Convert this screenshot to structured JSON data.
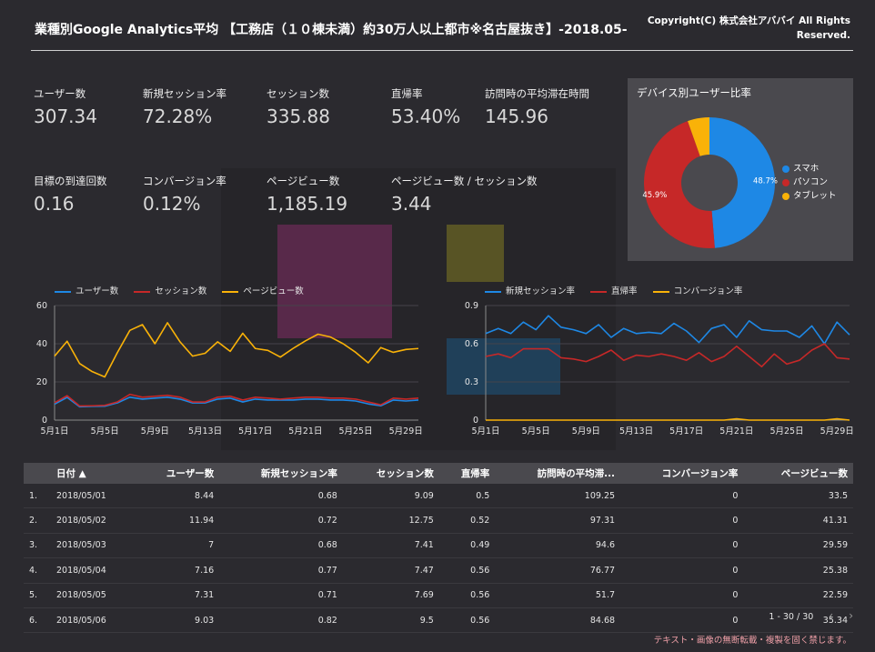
{
  "header": {
    "title": "業種別Google Analytics平均 【工務店（１０棟未満）約30万人以上都市※名古屋抜き】-2018.05-",
    "copyright": "Copyright(C) 株式会社アババイ All Rights Reserved."
  },
  "kpis": [
    {
      "label": "ユーザー数",
      "value": "307.34"
    },
    {
      "label": "新規セッション率",
      "value": "72.28%"
    },
    {
      "label": "セッション数",
      "value": "335.88"
    },
    {
      "label": "直帰率",
      "value": "53.40%"
    },
    {
      "label": "訪問時の平均滞在時間",
      "value": "145.96"
    },
    {
      "label": "目標の到達回数",
      "value": "0.16"
    },
    {
      "label": "コンバージョン率",
      "value": "0.12%"
    },
    {
      "label": "ページビュー数",
      "value": "1,185.19"
    },
    {
      "label": "ページビュー数 / セッション数",
      "value": "3.44"
    }
  ],
  "colors": {
    "blue": "#1e88e5",
    "red": "#c62828",
    "yellow": "#f9b208"
  },
  "chart_data": [
    {
      "type": "pie",
      "title": "デバイス別ユーザー比率",
      "categories": [
        "スマホ",
        "パソコン",
        "タブレット"
      ],
      "values": [
        48.7,
        45.9,
        5.4
      ],
      "slice_labels": [
        "48.7%",
        "45.9%",
        ""
      ],
      "colors": [
        "#1e88e5",
        "#c62828",
        "#f9b208"
      ],
      "legend_position": "right"
    },
    {
      "type": "line",
      "x": [
        "5月1日",
        "5月2日",
        "5月3日",
        "5月4日",
        "5月5日",
        "5月6日",
        "5月7日",
        "5月8日",
        "5月9日",
        "5月10日",
        "5月11日",
        "5月12日",
        "5月13日",
        "5月14日",
        "5月15日",
        "5月16日",
        "5月17日",
        "5月18日",
        "5月19日",
        "5月20日",
        "5月21日",
        "5月22日",
        "5月23日",
        "5月24日",
        "5月25日",
        "5月26日",
        "5月27日",
        "5月28日",
        "5月29日",
        "5月30日"
      ],
      "x_tick_labels": [
        "5月1日",
        "5月5日",
        "5月9日",
        "5月13日",
        "5月17日",
        "5月21日",
        "5月25日",
        "5月29日"
      ],
      "ylim": [
        0,
        60
      ],
      "y_ticks": [
        0,
        20,
        40,
        60
      ],
      "legend_position": "top",
      "series": [
        {
          "name": "ユーザー数",
          "color": "#1e88e5",
          "values": [
            8.4,
            11.9,
            7,
            7.2,
            7.3,
            9,
            12,
            11,
            11.5,
            12,
            11,
            9,
            9,
            11,
            11.5,
            9.5,
            11,
            10.5,
            10.5,
            10.5,
            11,
            11,
            10.5,
            10.5,
            10,
            8.5,
            7.5,
            10.5,
            10,
            10.5
          ]
        },
        {
          "name": "セッション数",
          "color": "#c62828",
          "values": [
            9.1,
            12.8,
            7.4,
            7.5,
            7.7,
            9.5,
            13.5,
            12,
            12.5,
            13,
            12,
            9.5,
            9.5,
            12,
            12.5,
            10.5,
            12,
            11.5,
            11,
            11.5,
            12,
            12,
            11.5,
            11.5,
            11,
            9.5,
            8,
            11.5,
            11,
            11.5
          ]
        },
        {
          "name": "ページビュー数",
          "color": "#f9b208",
          "values": [
            33.5,
            41.3,
            29.6,
            25.4,
            22.6,
            35.3,
            47,
            50,
            40,
            51,
            41,
            33.5,
            35,
            41,
            36,
            45.5,
            37.5,
            36.5,
            33,
            37.5,
            41.5,
            45,
            43.5,
            40,
            35.5,
            30,
            38,
            35.5,
            37,
            37.5
          ]
        }
      ]
    },
    {
      "type": "line",
      "x": [
        "5月1日",
        "5月2日",
        "5月3日",
        "5月4日",
        "5月5日",
        "5月6日",
        "5月7日",
        "5月8日",
        "5月9日",
        "5月10日",
        "5月11日",
        "5月12日",
        "5月13日",
        "5月14日",
        "5月15日",
        "5月16日",
        "5月17日",
        "5月18日",
        "5月19日",
        "5月20日",
        "5月21日",
        "5月22日",
        "5月23日",
        "5月24日",
        "5月25日",
        "5月26日",
        "5月27日",
        "5月28日",
        "5月29日",
        "5月30日"
      ],
      "x_tick_labels": [
        "5月1日",
        "5月5日",
        "5月9日",
        "5月13日",
        "5月17日",
        "5月21日",
        "5月25日",
        "5月29日"
      ],
      "ylim": [
        0,
        0.9
      ],
      "y_ticks": [
        0,
        0.3,
        0.6,
        0.9
      ],
      "legend_position": "top",
      "series": [
        {
          "name": "新規セッション率",
          "color": "#1e88e5",
          "values": [
            0.68,
            0.72,
            0.68,
            0.77,
            0.71,
            0.82,
            0.73,
            0.71,
            0.68,
            0.75,
            0.65,
            0.72,
            0.68,
            0.69,
            0.68,
            0.76,
            0.7,
            0.61,
            0.72,
            0.75,
            0.65,
            0.78,
            0.71,
            0.7,
            0.7,
            0.65,
            0.74,
            0.6,
            0.77,
            0.67
          ]
        },
        {
          "name": "直帰率",
          "color": "#c62828",
          "values": [
            0.5,
            0.52,
            0.49,
            0.56,
            0.56,
            0.56,
            0.49,
            0.48,
            0.46,
            0.5,
            0.55,
            0.47,
            0.51,
            0.5,
            0.52,
            0.5,
            0.47,
            0.53,
            0.46,
            0.5,
            0.58,
            0.5,
            0.42,
            0.52,
            0.44,
            0.47,
            0.55,
            0.6,
            0.49,
            0.48
          ]
        },
        {
          "name": "コンバージョン率",
          "color": "#f9b208",
          "values": [
            0,
            0,
            0,
            0,
            0,
            0,
            0,
            0,
            0,
            0,
            0,
            0,
            0,
            0,
            0,
            0,
            0,
            0,
            0,
            0,
            0.01,
            0,
            0,
            0,
            0,
            0,
            0,
            0,
            0.01,
            0
          ]
        }
      ]
    }
  ],
  "table": {
    "headers": [
      "",
      "日付 ▲",
      "ユーザー数",
      "新規セッション率",
      "セッション数",
      "直帰率",
      "訪問時の平均滞...",
      "コンバージョン率",
      "ページビュー数"
    ],
    "rows": [
      [
        "1.",
        "2018/05/01",
        "8.44",
        "0.68",
        "9.09",
        "0.5",
        "109.25",
        "0",
        "33.5"
      ],
      [
        "2.",
        "2018/05/02",
        "11.94",
        "0.72",
        "12.75",
        "0.52",
        "97.31",
        "0",
        "41.31"
      ],
      [
        "3.",
        "2018/05/03",
        "7",
        "0.68",
        "7.41",
        "0.49",
        "94.6",
        "0",
        "29.59"
      ],
      [
        "4.",
        "2018/05/04",
        "7.16",
        "0.77",
        "7.47",
        "0.56",
        "76.77",
        "0",
        "25.38"
      ],
      [
        "5.",
        "2018/05/05",
        "7.31",
        "0.71",
        "7.69",
        "0.56",
        "51.7",
        "0",
        "22.59"
      ],
      [
        "6.",
        "2018/05/06",
        "9.03",
        "0.82",
        "9.5",
        "0.56",
        "84.68",
        "0",
        "35.34"
      ]
    ]
  },
  "pager": {
    "range": "1 - 30 / 30",
    "prev": "‹",
    "next": "›"
  },
  "footnote": "テキスト・画像の無断転載・複製を固く禁じます。"
}
